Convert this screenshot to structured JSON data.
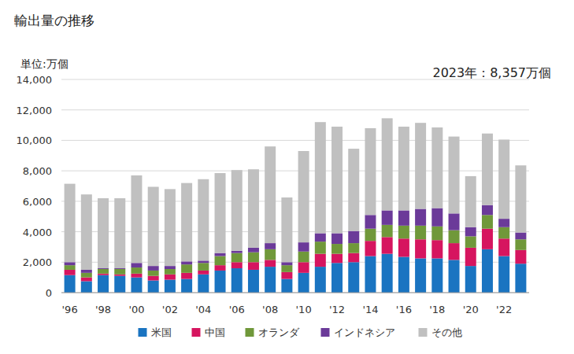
{
  "chart_data": {
    "type": "bar",
    "title": "輸出量の推移",
    "ylabel": "単位:万個",
    "annotation": "2023年：8,357万個",
    "stacked": true,
    "grid": true,
    "legend": "bottom",
    "categories": [
      "'96",
      null,
      "'98",
      null,
      "'00",
      null,
      "'02",
      null,
      "'04",
      null,
      "'06",
      null,
      "'08",
      null,
      "'10",
      null,
      "'12",
      null,
      "'14",
      null,
      "'16",
      null,
      "'18",
      null,
      "'20",
      null,
      "'22",
      null
    ],
    "ylim": [
      0,
      14000
    ],
    "yticks": [
      0,
      {
        "value": 2000,
        "label": "2,000"
      },
      {
        "value": 4000,
        "label": "4,000"
      },
      {
        "value": 6000,
        "label": "6,000"
      },
      {
        "value": 8000,
        "label": "8,000"
      },
      {
        "value": 10000,
        "label": "10,000"
      },
      {
        "value": 12000,
        "label": "12,000"
      },
      {
        "value": 14000,
        "label": "14,000"
      }
    ],
    "series": [
      {
        "name": "米国",
        "color": "#1a74c1",
        "values": [
          1150,
          750,
          1150,
          1100,
          1000,
          800,
          850,
          900,
          1200,
          1450,
          1600,
          1500,
          1700,
          900,
          1300,
          1700,
          1950,
          2000,
          2400,
          2550,
          2350,
          2250,
          2250,
          2150,
          1750,
          2850,
          2400,
          1900
        ]
      },
      {
        "name": "中国",
        "color": "#d6155f",
        "values": [
          350,
          250,
          100,
          100,
          250,
          300,
          350,
          400,
          250,
          350,
          400,
          500,
          450,
          450,
          700,
          850,
          600,
          600,
          1000,
          1100,
          1200,
          1250,
          1200,
          1100,
          1200,
          1350,
          1150,
          900
        ]
      },
      {
        "name": "オランダ",
        "color": "#70983a",
        "values": [
          300,
          300,
          300,
          350,
          400,
          350,
          350,
          550,
          500,
          600,
          600,
          650,
          700,
          450,
          700,
          800,
          650,
          650,
          800,
          800,
          850,
          900,
          900,
          850,
          750,
          900,
          750,
          700
        ]
      },
      {
        "name": "インドネシア",
        "color": "#6b3a99",
        "values": [
          200,
          200,
          50,
          50,
          300,
          300,
          200,
          200,
          150,
          200,
          150,
          300,
          400,
          200,
          600,
          550,
          700,
          800,
          900,
          950,
          1000,
          1100,
          1200,
          1100,
          600,
          650,
          550,
          450
        ]
      },
      {
        "name": "その他",
        "color": "#c0c0c0",
        "values": [
          5150,
          4950,
          4600,
          4600,
          5750,
          5200,
          5050,
          5150,
          5350,
          5250,
          5300,
          5150,
          6350,
          4250,
          6000,
          7300,
          7000,
          5400,
          5700,
          6050,
          5500,
          5650,
          5300,
          5050,
          3350,
          4700,
          5200,
          4407
        ]
      }
    ]
  }
}
